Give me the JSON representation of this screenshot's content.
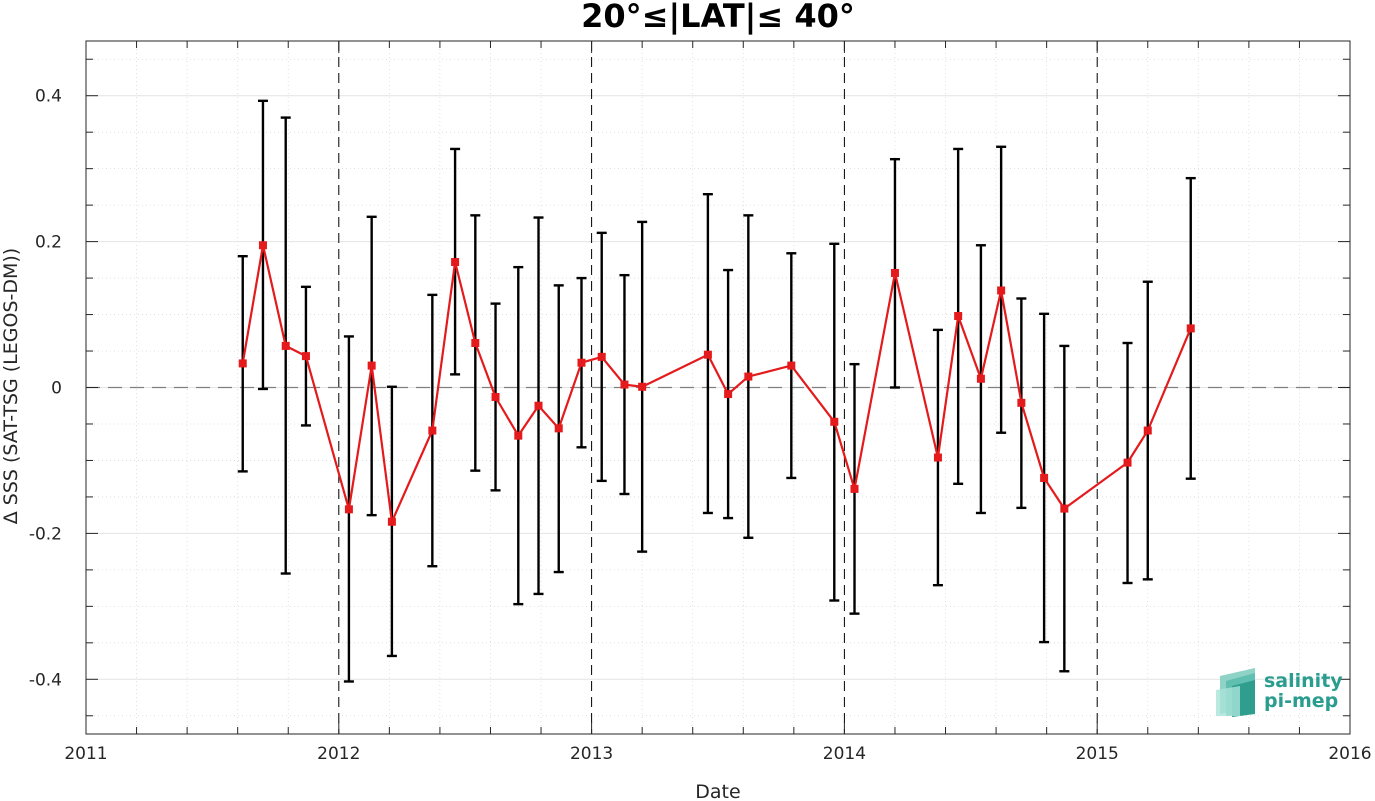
{
  "chart_data": {
    "type": "line",
    "title": "20°≤|LAT|≤ 40°",
    "xlabel": "Date",
    "ylabel": "Δ SSS (SAT-TSG (LEGOS-DM))",
    "xlim": [
      2011,
      2016
    ],
    "ylim": [
      -0.475,
      0.475
    ],
    "x_ticks": [
      2011,
      2012,
      2013,
      2014,
      2015,
      2016
    ],
    "x_tick_labels": [
      "2011",
      "2012",
      "2013",
      "2014",
      "2015",
      "2016"
    ],
    "y_ticks": [
      -0.4,
      -0.2,
      0,
      0.2,
      0.4
    ],
    "y_tick_labels": [
      "-0.4",
      "-0.2",
      "0",
      "0.2",
      "0.4"
    ],
    "grid": true,
    "zero_line": true,
    "year_lines": [
      2012,
      2013,
      2014,
      2015
    ],
    "series_color": "#e41a1c",
    "errorbar_color": "#000000",
    "points": [
      {
        "x": 2011.62,
        "y": 0.033,
        "lo": -0.115,
        "hi": 0.18
      },
      {
        "x": 2011.7,
        "y": 0.195,
        "lo": -0.002,
        "hi": 0.393
      },
      {
        "x": 2011.79,
        "y": 0.057,
        "lo": -0.255,
        "hi": 0.37
      },
      {
        "x": 2011.87,
        "y": 0.043,
        "lo": -0.052,
        "hi": 0.138
      },
      {
        "x": 2012.04,
        "y": -0.167,
        "lo": -0.403,
        "hi": 0.07
      },
      {
        "x": 2012.13,
        "y": 0.03,
        "lo": -0.175,
        "hi": 0.234
      },
      {
        "x": 2012.21,
        "y": -0.184,
        "lo": -0.368,
        "hi": 0.001
      },
      {
        "x": 2012.37,
        "y": -0.059,
        "lo": -0.245,
        "hi": 0.127
      },
      {
        "x": 2012.46,
        "y": 0.172,
        "lo": 0.018,
        "hi": 0.327
      },
      {
        "x": 2012.54,
        "y": 0.061,
        "lo": -0.114,
        "hi": 0.236
      },
      {
        "x": 2012.62,
        "y": -0.013,
        "lo": -0.141,
        "hi": 0.115
      },
      {
        "x": 2012.71,
        "y": -0.066,
        "lo": -0.297,
        "hi": 0.165
      },
      {
        "x": 2012.79,
        "y": -0.025,
        "lo": -0.283,
        "hi": 0.233
      },
      {
        "x": 2012.87,
        "y": -0.056,
        "lo": -0.253,
        "hi": 0.14
      },
      {
        "x": 2012.96,
        "y": 0.034,
        "lo": -0.082,
        "hi": 0.15
      },
      {
        "x": 2013.04,
        "y": 0.042,
        "lo": -0.128,
        "hi": 0.212
      },
      {
        "x": 2013.13,
        "y": 0.004,
        "lo": -0.146,
        "hi": 0.154
      },
      {
        "x": 2013.2,
        "y": 0.001,
        "lo": -0.225,
        "hi": 0.227
      },
      {
        "x": 2013.46,
        "y": 0.045,
        "lo": -0.172,
        "hi": 0.265
      },
      {
        "x": 2013.54,
        "y": -0.009,
        "lo": -0.179,
        "hi": 0.161
      },
      {
        "x": 2013.62,
        "y": 0.015,
        "lo": -0.206,
        "hi": 0.236
      },
      {
        "x": 2013.79,
        "y": 0.03,
        "lo": -0.124,
        "hi": 0.184
      },
      {
        "x": 2013.96,
        "y": -0.047,
        "lo": -0.292,
        "hi": 0.197
      },
      {
        "x": 2014.04,
        "y": -0.139,
        "lo": -0.31,
        "hi": 0.032
      },
      {
        "x": 2014.2,
        "y": 0.157,
        "lo": 0.0,
        "hi": 0.313
      },
      {
        "x": 2014.37,
        "y": -0.096,
        "lo": -0.271,
        "hi": 0.079
      },
      {
        "x": 2014.45,
        "y": 0.098,
        "lo": -0.132,
        "hi": 0.327
      },
      {
        "x": 2014.54,
        "y": 0.012,
        "lo": -0.172,
        "hi": 0.195
      },
      {
        "x": 2014.62,
        "y": 0.133,
        "lo": -0.062,
        "hi": 0.33
      },
      {
        "x": 2014.7,
        "y": -0.021,
        "lo": -0.165,
        "hi": 0.122
      },
      {
        "x": 2014.79,
        "y": -0.124,
        "lo": -0.349,
        "hi": 0.101
      },
      {
        "x": 2014.87,
        "y": -0.166,
        "lo": -0.389,
        "hi": 0.057
      },
      {
        "x": 2015.12,
        "y": -0.103,
        "lo": -0.268,
        "hi": 0.061
      },
      {
        "x": 2015.2,
        "y": -0.059,
        "lo": -0.263,
        "hi": 0.145
      },
      {
        "x": 2015.37,
        "y": 0.081,
        "lo": -0.125,
        "hi": 0.287
      }
    ]
  },
  "logo": {
    "line1": "salinity",
    "line2": "pi-mep"
  }
}
